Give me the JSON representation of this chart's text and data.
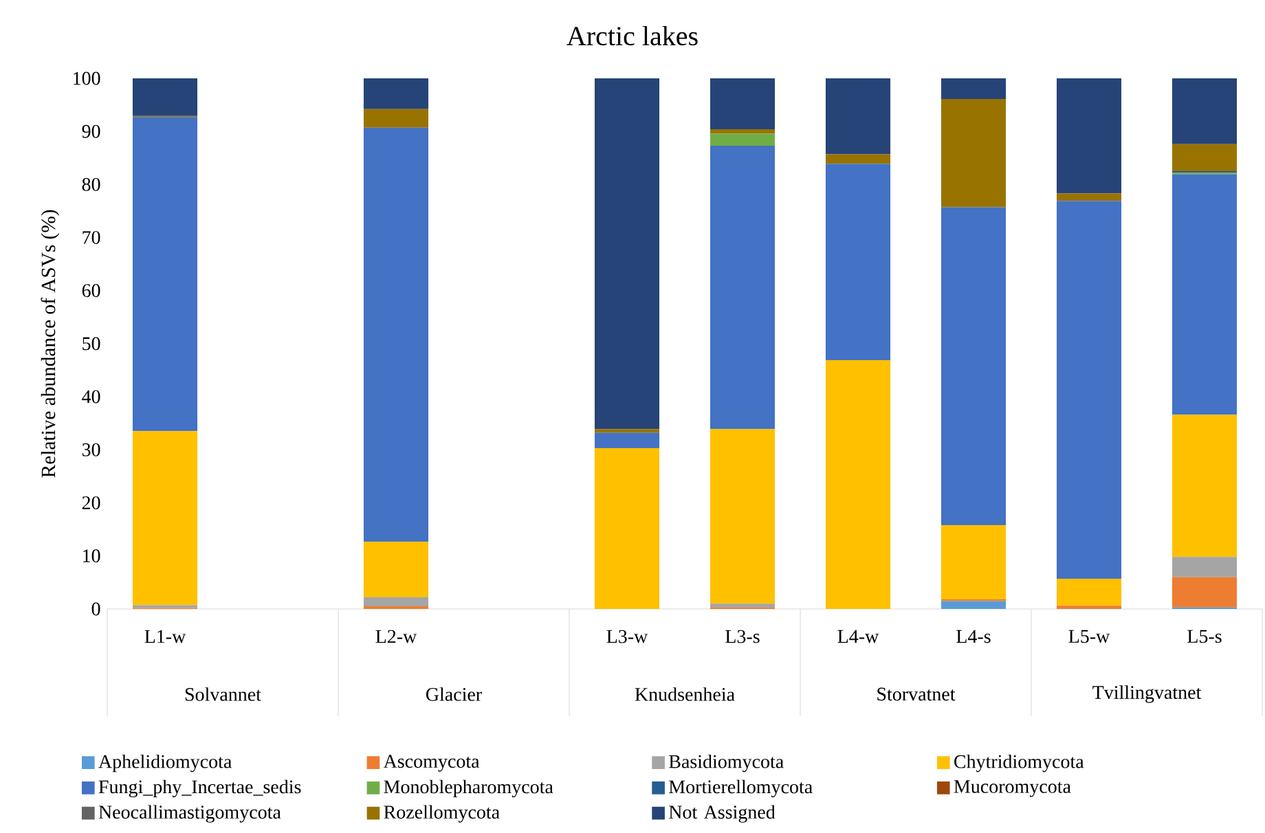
{
  "chart_data": {
    "type": "bar",
    "stacked": true,
    "title": "Arctic lakes",
    "ylabel": "Relative abundance of ASVs (%)",
    "categories": [
      "L1-w",
      null,
      "L2-w",
      null,
      "L3-w",
      "L3-s",
      "L4-w",
      "L4-s",
      "L5-w",
      "L5-s"
    ],
    "ylim": [
      0,
      100
    ],
    "yticks": [
      0,
      10,
      20,
      30,
      40,
      50,
      60,
      70,
      80,
      90,
      100
    ],
    "grid": false,
    "legend": "bottom",
    "annotations": [
      "Solvannet",
      "Glacier",
      "Knudsenheia",
      "Storvatnet",
      "Tvillingvatnet"
    ],
    "series": [
      {
        "name": "Aphelidiomycota",
        "color": "#5b9bd5",
        "values": [
          0,
          null,
          0,
          null,
          0,
          0,
          0,
          1.5,
          0,
          0.3
        ]
      },
      {
        "name": "Ascomycota",
        "color": "#ed7d31",
        "values": [
          0.2,
          null,
          0.5,
          null,
          0,
          0.3,
          0,
          0.3,
          0.6,
          5.7
        ]
      },
      {
        "name": "Basidiomycota",
        "color": "#a5a5a5",
        "values": [
          0.5,
          null,
          1.7,
          null,
          0,
          0.7,
          0,
          0,
          0,
          3.8
        ]
      },
      {
        "name": "Chytridiomycota",
        "color": "#ffc000",
        "values": [
          32.8,
          null,
          10.5,
          null,
          30.3,
          32.9,
          46.9,
          14.0,
          5.1,
          26.8
        ]
      },
      {
        "name": "Fungi_phy_Incertae_sedis",
        "color": "#4472c4",
        "values": [
          59.2,
          null,
          78.0,
          null,
          2.9,
          53.4,
          37.0,
          59.9,
          71.2,
          45.3
        ]
      },
      {
        "name": "Monoblepharomycota",
        "color": "#70ad47",
        "values": [
          0,
          null,
          0,
          null,
          0,
          2.3,
          0,
          0,
          0,
          0.3
        ]
      },
      {
        "name": "Mortierellomycota",
        "color": "#255e91",
        "values": [
          0,
          null,
          0,
          null,
          0,
          0,
          0,
          0,
          0,
          0.3
        ]
      },
      {
        "name": "Mucoromycota",
        "color": "#9e480e",
        "values": [
          0,
          null,
          0,
          null,
          0,
          0,
          0,
          0,
          0,
          0
        ]
      },
      {
        "name": "Neocallimastigomycota",
        "color": "#636363",
        "values": [
          0,
          null,
          0,
          null,
          0,
          0,
          0,
          0,
          0,
          0
        ]
      },
      {
        "name": "Rozellomycota",
        "color": "#997300",
        "values": [
          0.2,
          null,
          3.5,
          null,
          0.7,
          0.8,
          1.8,
          20.4,
          1.4,
          5.1
        ]
      },
      {
        "name": "Not Assigned",
        "color": "#264478",
        "values": [
          7.1,
          null,
          5.8,
          null,
          66.1,
          9.6,
          14.3,
          3.9,
          21.7,
          12.4
        ]
      }
    ]
  }
}
